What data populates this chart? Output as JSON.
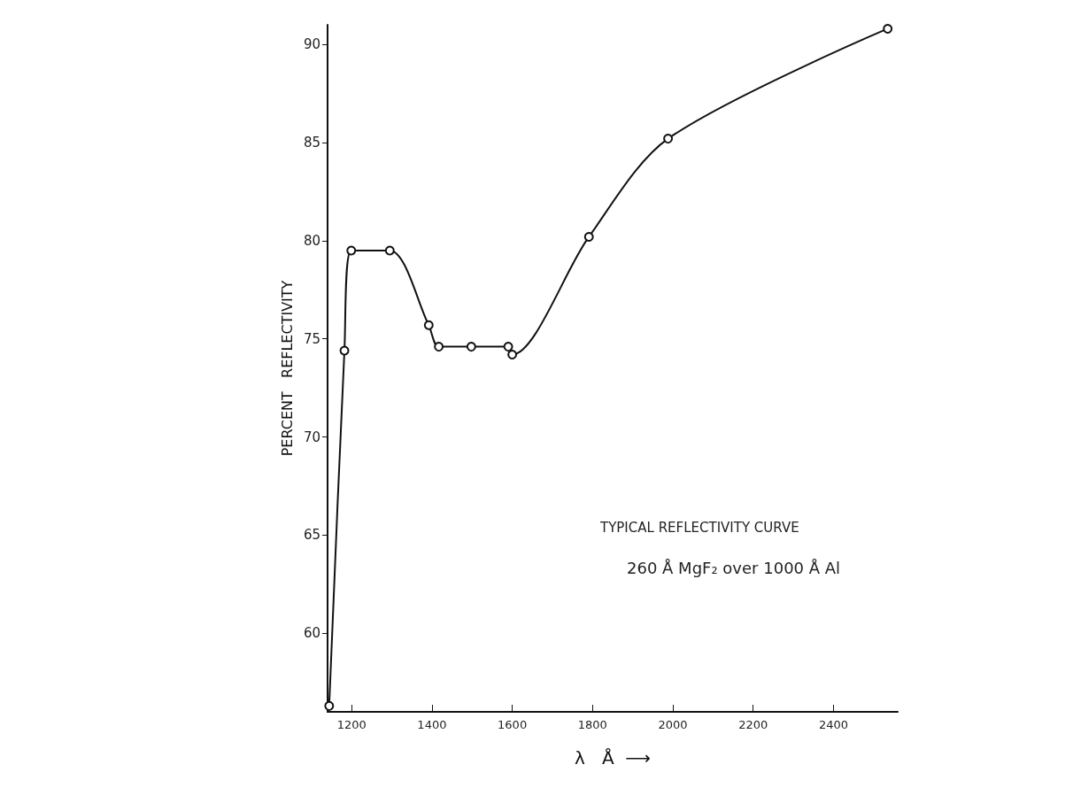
{
  "chart_data": {
    "type": "line",
    "xlabel": "λ   Å  ⟶",
    "ylabel": "PERCENT   REFLECTIVITY",
    "x": [
      1144,
      1182,
      1199,
      1295,
      1392,
      1417,
      1498,
      1590,
      1600,
      1791,
      1988,
      2535
    ],
    "series": [
      {
        "color": "#111111",
        "values": [
          56.3,
          74.4,
          79.5,
          79.5,
          75.7,
          74.6,
          74.6,
          74.6,
          74.2,
          80.2,
          85.2,
          90.8
        ]
      }
    ],
    "xlim": [
      1140,
      2560
    ],
    "xticks": [
      1200,
      1400,
      1600,
      1800,
      2000,
      2200,
      2400
    ],
    "ylim": [
      56,
      91
    ],
    "yticks": [
      60,
      65,
      70,
      75,
      80,
      85,
      90
    ],
    "annotations": [
      "TYPICAL REFLECTIVITY CURVE",
      "260 Å MgF₂ over 1000 Å Al"
    ],
    "grid": false,
    "marker": "circle",
    "line_style": "solid"
  }
}
